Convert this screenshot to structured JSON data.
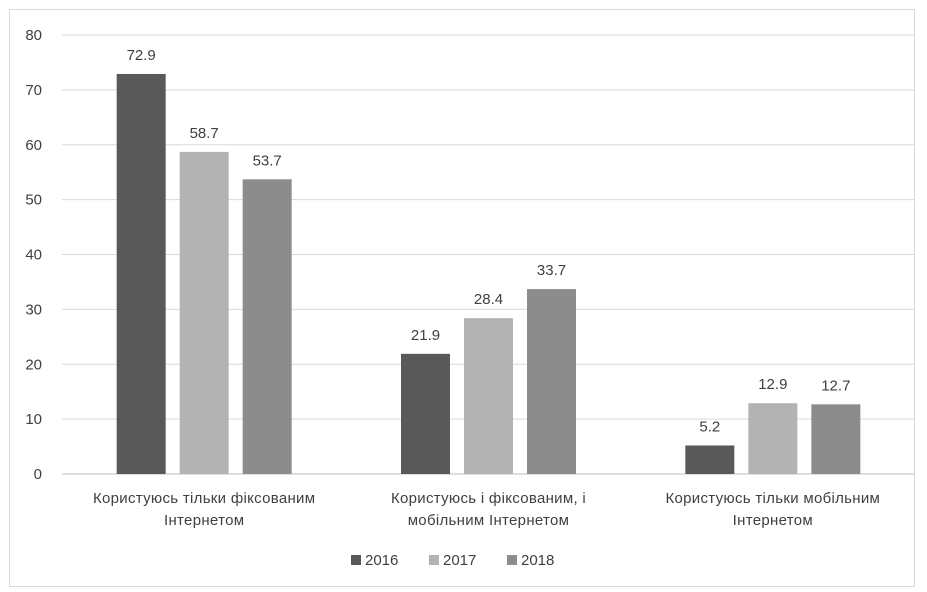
{
  "chart_data": {
    "type": "bar",
    "categories": [
      [
        "Користуюсь тільки фіксованим",
        "Інтернетом"
      ],
      [
        "Користуюсь і фіксованим, і",
        "мобільним Інтернетом"
      ],
      [
        "Користуюсь тільки мобільним",
        "Інтернетом"
      ]
    ],
    "series": [
      {
        "name": "2016",
        "values": [
          72.9,
          21.9,
          5.2
        ],
        "color": "#595959"
      },
      {
        "name": "2017",
        "values": [
          58.7,
          28.4,
          12.9
        ],
        "color": "#b3b3b3"
      },
      {
        "name": "2018",
        "values": [
          53.7,
          33.7,
          12.7
        ],
        "color": "#8c8c8c"
      }
    ],
    "ylim": [
      0,
      80
    ],
    "yticks": [
      0,
      10,
      20,
      30,
      40,
      50,
      60,
      70,
      80
    ],
    "grid": true,
    "legend": "bottom"
  }
}
